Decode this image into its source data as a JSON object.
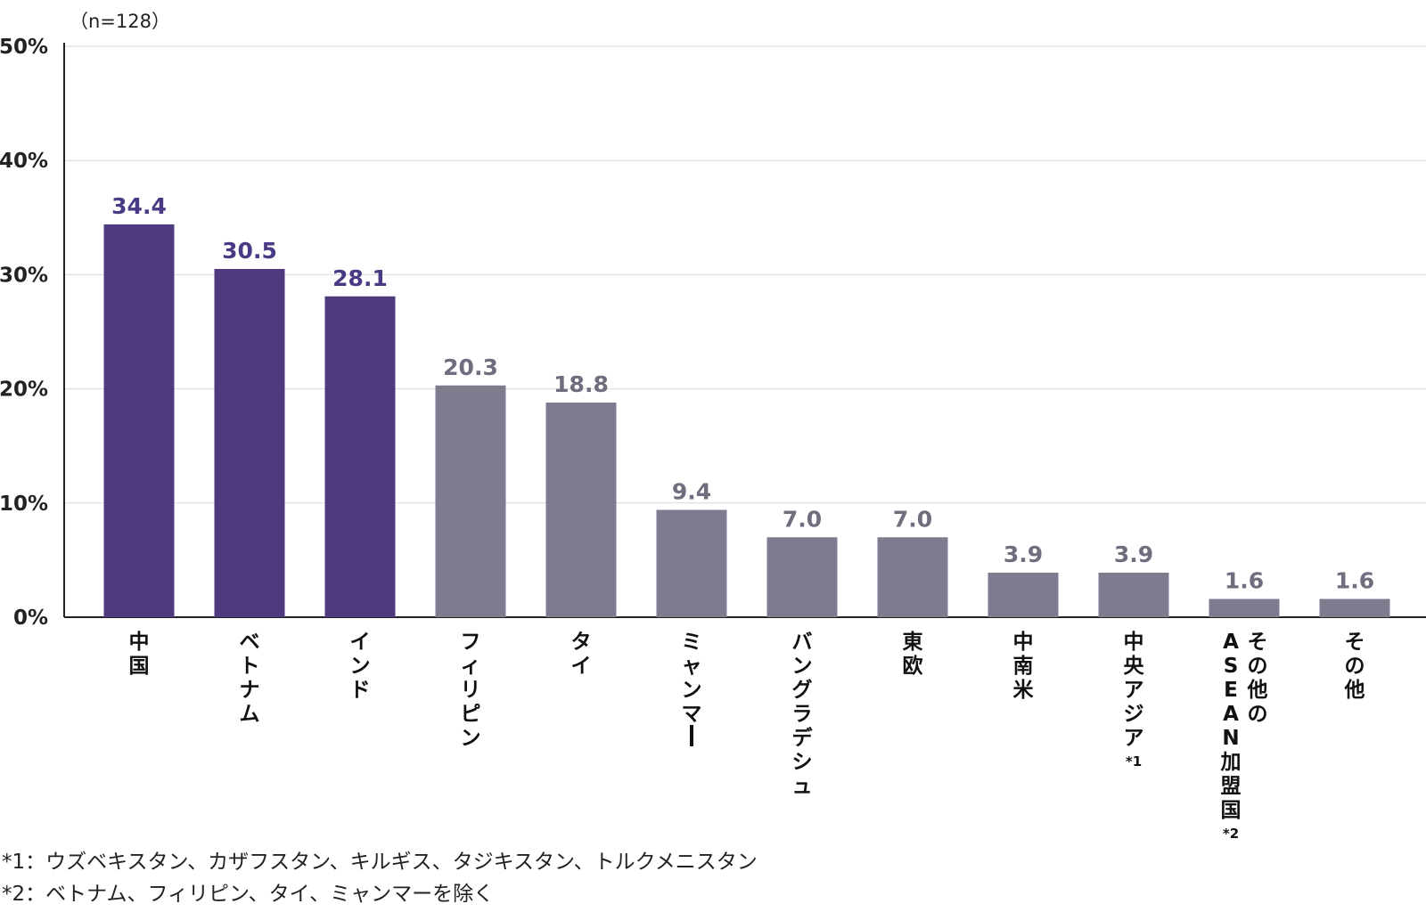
{
  "sample_note": "（n=128）",
  "footnotes": [
    "*1：ウズベキスタン、カザフスタン、キルギス、タジキスタン、トルクメニスタン",
    "*2：ベトナム、フィリピン、タイ、ミャンマーを除く"
  ],
  "colors": {
    "highlight": "#4f3a7f",
    "default": "#7d7c8e",
    "highlight_label": "#4a3a85",
    "default_label": "#6e6e7e",
    "grid": "#d9d9d9",
    "axis": "#222222"
  },
  "chart_data": {
    "type": "bar",
    "title": "",
    "xlabel": "",
    "ylabel": "",
    "ylim": [
      0,
      50
    ],
    "yticks": [
      0,
      10,
      20,
      30,
      40,
      50
    ],
    "ytick_labels": [
      "0%",
      "10%",
      "20%",
      "30%",
      "40%",
      "50%"
    ],
    "grid": true,
    "categories": [
      {
        "label": "中国",
        "columns": [
          "中国"
        ],
        "note": ""
      },
      {
        "label": "ベトナム",
        "columns": [
          "ベトナム"
        ],
        "note": ""
      },
      {
        "label": "インド",
        "columns": [
          "インド"
        ],
        "note": ""
      },
      {
        "label": "フィリピン",
        "columns": [
          "フィリピン"
        ],
        "note": ""
      },
      {
        "label": "タイ",
        "columns": [
          "タイ"
        ],
        "note": ""
      },
      {
        "label": "ミャンマー",
        "columns": [
          "ミャンマー"
        ],
        "note": ""
      },
      {
        "label": "バングラデシュ",
        "columns": [
          "バングラデシュ"
        ],
        "note": ""
      },
      {
        "label": "東欧",
        "columns": [
          "東欧"
        ],
        "note": ""
      },
      {
        "label": "中南米",
        "columns": [
          "中南米"
        ],
        "note": ""
      },
      {
        "label": "中央アジア",
        "columns": [
          "中央アジア"
        ],
        "note": "*1"
      },
      {
        "label": "その他のASEAN加盟国",
        "columns": [
          "ASEAN加盟国",
          "その他の"
        ],
        "note": "*2"
      },
      {
        "label": "その他",
        "columns": [
          "その他"
        ],
        "note": ""
      }
    ],
    "values": [
      34.4,
      30.5,
      28.1,
      20.3,
      18.8,
      9.4,
      7.0,
      7.0,
      3.9,
      3.9,
      1.6,
      1.6
    ],
    "value_labels": [
      "34.4",
      "30.5",
      "28.1",
      "20.3",
      "18.8",
      "9.4",
      "7.0",
      "7.0",
      "3.9",
      "3.9",
      "1.6",
      "1.6"
    ],
    "highlighted": [
      true,
      true,
      true,
      false,
      false,
      false,
      false,
      false,
      false,
      false,
      false,
      false
    ]
  }
}
